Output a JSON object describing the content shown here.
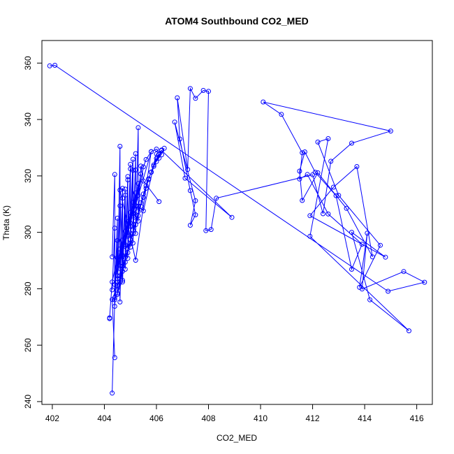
{
  "chart_data": {
    "type": "line",
    "title": "ATOM4 Southbound CO2_MED",
    "xlabel": "CO2_MED",
    "ylabel": "Theta (K)",
    "xlim": [
      401.6,
      416.6
    ],
    "ylim": [
      239,
      368
    ],
    "xticks": [
      402,
      404,
      406,
      408,
      410,
      412,
      414,
      416
    ],
    "yticks": [
      240,
      260,
      280,
      300,
      320,
      340,
      360
    ],
    "grid": false,
    "legend": "none",
    "markers": "open-circle",
    "color": "#0000ff",
    "series": [
      {
        "x": [
          401.9,
          402.1,
          414.9,
          416.3,
          415.5,
          413.9,
          414.1,
          413.8,
          414.6,
          413.0,
          412.2,
          412.6,
          411.9,
          415.7,
          414.2,
          413.5,
          414.8,
          411.9,
          412.8,
          413.7,
          414.3,
          413.3,
          412.2,
          411.6,
          411.5,
          411.7,
          412.1,
          412.9,
          413.5,
          413.9,
          412.6,
          411.8,
          411.5,
          411.6,
          410.8,
          410.1,
          415.0,
          413.5,
          412.7,
          412.4,
          412.0,
          408.3,
          408.1,
          407.9,
          408.0,
          407.8,
          407.5,
          407.3,
          407.2,
          406.8,
          406.9,
          407.3,
          407.5,
          407.3,
          407.5,
          406.7,
          407.1,
          408.9,
          406.2,
          406.0,
          405.5,
          405.3,
          405.1,
          405.8,
          405.2,
          404.6,
          404.7,
          404.4,
          404.3
        ],
        "y": [
          359.0,
          359.2,
          279.1,
          282.3,
          286.1,
          279.9,
          299.7,
          280.5,
          295.4,
          313.1,
          332.0,
          333.2,
          298.6,
          265.1,
          276.1,
          300.0,
          291.2,
          305.9,
          316.0,
          323.3,
          291.3,
          308.5,
          321.1,
          311.3,
          321.7,
          328.5,
          321.3,
          313.0,
          286.9,
          295.8,
          306.5,
          320.5,
          318.9,
          328.2,
          341.8,
          346.2,
          335.9,
          331.6,
          325.2,
          306.6,
          320.4,
          312.1,
          301.0,
          300.6,
          350.0,
          350.3,
          347.5,
          351.0,
          322.3,
          347.7,
          333.1,
          314.8,
          306.2,
          302.5,
          311.2,
          339.1,
          319.2,
          305.3,
          329.0,
          327.8,
          307.6,
          309.2,
          306.5,
          328.6,
          290.1,
          315.0,
          283.0,
          276.1,
          243.0
        ]
      },
      {
        "x": [
          404.4,
          404.3,
          404.6,
          404.5,
          404.7,
          404.5,
          404.8,
          404.6,
          404.9,
          404.7,
          405.0,
          404.8,
          405.1,
          404.9,
          405.2,
          405.0,
          405.3,
          405.1,
          405.4,
          405.2,
          405.5,
          405.3,
          405.6,
          405.4,
          405.7,
          405.5,
          405.8,
          405.6,
          405.9,
          405.7,
          406.0,
          405.8,
          406.1,
          405.9,
          406.2,
          406.0,
          406.3,
          406.1
        ],
        "y": [
          255.6,
          276.2,
          283.5,
          278.5,
          286.2,
          281.1,
          289.4,
          284.6,
          292.8,
          287.9,
          296.1,
          291.2,
          299.5,
          294.3,
          302.7,
          297.5,
          305.9,
          300.8,
          309.2,
          304.1,
          312.4,
          307.4,
          315.6,
          310.5,
          318.7,
          313.6,
          321.4,
          316.5,
          323.9,
          319.0,
          326.2,
          321.3,
          327.7,
          323.4,
          329.2,
          325.1,
          329.8,
          326.3
        ]
      },
      {
        "x": [
          404.2,
          404.2,
          404.3,
          404.5,
          404.4,
          404.6,
          404.5,
          404.7,
          404.6,
          404.8,
          404.7,
          404.9,
          404.8,
          405.0,
          404.9,
          405.1,
          405.0,
          405.2,
          405.1,
          405.3,
          405.2,
          405.4,
          405.3,
          405.5,
          405.6,
          405.8,
          406.0,
          406.2
        ],
        "y": [
          269.4,
          269.7,
          282.4,
          291.0,
          281.5,
          294.1,
          284.6,
          297.2,
          288.1,
          300.4,
          291.5,
          303.8,
          295.0,
          307.1,
          298.6,
          310.6,
          302.2,
          314.0,
          305.8,
          317.3,
          309.5,
          320.7,
          313.1,
          323.2,
          325.8,
          328.6,
          329.5,
          327.5
        ]
      },
      {
        "x": [
          404.3,
          404.4,
          404.4,
          404.5,
          404.5,
          404.6,
          404.6,
          404.7,
          404.7,
          404.8,
          404.8,
          404.9,
          404.9,
          405.0,
          405.0,
          405.1,
          405.1,
          405.2,
          405.2,
          405.3,
          405.3,
          405.4,
          405.5,
          406.1
        ],
        "y": [
          291.3,
          320.5,
          273.8,
          297.1,
          278.0,
          330.5,
          275.3,
          315.6,
          282.4,
          313.2,
          286.9,
          318.6,
          290.8,
          324.1,
          294.7,
          322.0,
          296.2,
          327.9,
          299.6,
          337.1,
          304.0,
          323.5,
          318.2,
          310.9
        ]
      },
      {
        "x": [
          404.3,
          404.4,
          404.4,
          404.5,
          404.5,
          404.6,
          404.6,
          404.7,
          404.7,
          404.8,
          404.8,
          404.9,
          404.9,
          405.0,
          405.0,
          405.1,
          405.1,
          405.2
        ],
        "y": [
          279.6,
          301.5,
          276.8,
          305.0,
          283.6,
          309.4,
          287.2,
          312.1,
          291.9,
          315.3,
          295.6,
          319.8,
          299.1,
          322.5,
          303.3,
          325.9,
          306.8,
          322.1
        ]
      }
    ]
  }
}
